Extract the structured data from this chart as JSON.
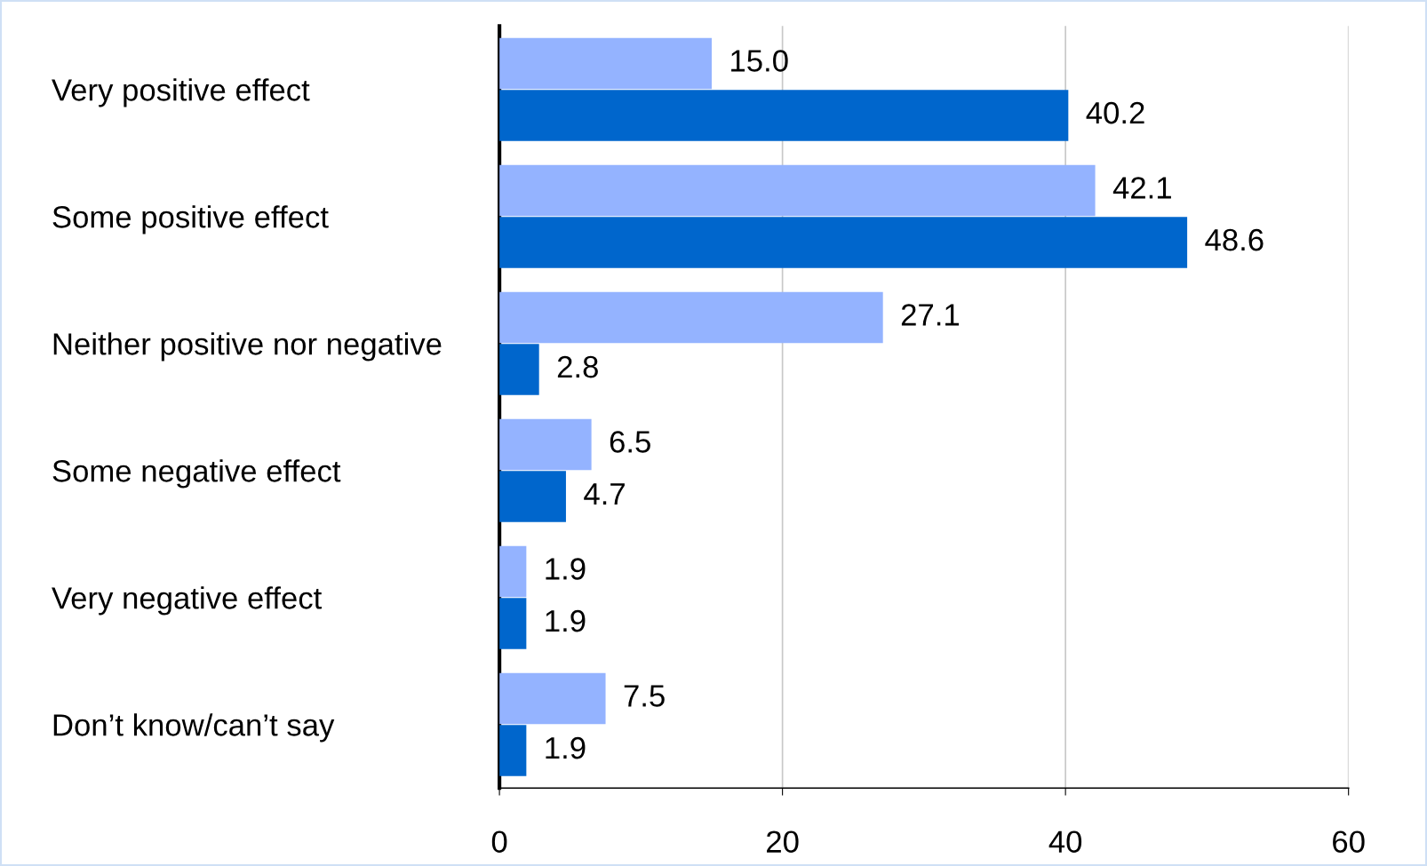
{
  "chart_data": {
    "type": "bar",
    "orientation": "horizontal",
    "categories": [
      "Very positive effect",
      "Some positive effect",
      "Neither positive nor negative",
      "Some negative effect",
      "Very negative effect",
      "Don’t know/can’t say"
    ],
    "series": [
      {
        "color": "#94b3ff",
        "values": [
          15.0,
          42.1,
          27.1,
          6.5,
          1.9,
          7.5
        ],
        "value_labels": [
          "15.0",
          "42.1",
          "27.1",
          "6.5",
          "1.9",
          "7.5"
        ]
      },
      {
        "color": "#0066cc",
        "values": [
          40.2,
          48.6,
          2.8,
          4.7,
          1.9,
          1.9
        ],
        "value_labels": [
          "40.2",
          "48.6",
          "2.8",
          "4.7",
          "1.9",
          "1.9"
        ]
      }
    ],
    "xlim": [
      0,
      60
    ],
    "xticks": [
      0,
      20,
      40,
      60
    ],
    "grid": "x",
    "legend": false
  }
}
